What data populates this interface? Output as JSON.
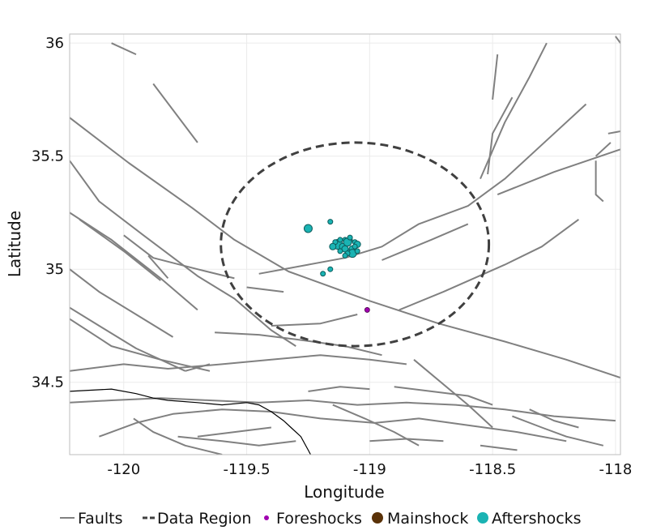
{
  "chart_data": {
    "type": "scatter",
    "title": "",
    "xlabel": "Longitude",
    "ylabel": "Latitude",
    "xlim": [
      -120.22,
      -117.98
    ],
    "ylim": [
      34.18,
      36.04
    ],
    "grid": true,
    "legend_placement": "bottom",
    "x_ticks": [
      {
        "value": -120,
        "label": "-120"
      },
      {
        "value": -119.5,
        "label": "-119.5"
      },
      {
        "value": -119,
        "label": "-119"
      },
      {
        "value": -118.5,
        "label": "-118.5"
      },
      {
        "value": -118,
        "label": "-118"
      }
    ],
    "y_ticks": [
      {
        "value": 34.5,
        "label": "34.5"
      },
      {
        "value": 35,
        "label": "35"
      },
      {
        "value": 35.5,
        "label": "35.5"
      },
      {
        "value": 36,
        "label": "36"
      }
    ],
    "colors": {
      "faults": "#808080",
      "coast": "#000000",
      "region": "#404040",
      "foreshocks": "#a000b0",
      "mainshock": "#5a3208",
      "aftershocks": "#1ab3b3",
      "aftershock_edge": "#0d5c5c",
      "grid": "#ebebeb",
      "frame": "#bdbdbd"
    },
    "legend": [
      {
        "label": "Faults",
        "symbol": "line"
      },
      {
        "label": "Data Region",
        "symbol": "dashed"
      },
      {
        "label": "Foreshocks",
        "symbol": "small-dot"
      },
      {
        "label": "Mainshock",
        "symbol": "large-dot"
      },
      {
        "label": "Aftershocks",
        "symbol": "large-dot"
      }
    ],
    "data_region": {
      "center": [
        -119.06,
        35.11
      ],
      "radius_lon": 0.545,
      "radius_lat": 0.45
    },
    "foreshocks": [
      {
        "x": -119.01,
        "y": 34.82,
        "size": 3
      }
    ],
    "mainshocks": [],
    "aftershocks": [
      {
        "x": -119.25,
        "y": 35.18,
        "size": 5
      },
      {
        "x": -119.16,
        "y": 35.21,
        "size": 3
      },
      {
        "x": -119.16,
        "y": 35.0,
        "size": 3
      },
      {
        "x": -119.19,
        "y": 34.98,
        "size": 3
      },
      {
        "x": -119.08,
        "y": 35.13,
        "size": 3
      },
      {
        "x": -119.06,
        "y": 35.12,
        "size": 3
      },
      {
        "x": -119.05,
        "y": 35.11,
        "size": 4
      },
      {
        "x": -119.13,
        "y": 35.11,
        "size": 6
      },
      {
        "x": -119.11,
        "y": 35.1,
        "size": 4
      },
      {
        "x": -119.1,
        "y": 35.09,
        "size": 4
      },
      {
        "x": -119.08,
        "y": 35.08,
        "size": 3
      },
      {
        "x": -119.07,
        "y": 35.09,
        "size": 4
      },
      {
        "x": -119.06,
        "y": 35.1,
        "size": 3
      },
      {
        "x": -119.07,
        "y": 35.07,
        "size": 5
      },
      {
        "x": -119.09,
        "y": 35.07,
        "size": 3
      },
      {
        "x": -119.12,
        "y": 35.13,
        "size": 3
      },
      {
        "x": -119.14,
        "y": 35.12,
        "size": 3
      },
      {
        "x": -119.15,
        "y": 35.1,
        "size": 4
      },
      {
        "x": -119.1,
        "y": 35.13,
        "size": 3
      },
      {
        "x": -119.09,
        "y": 35.12,
        "size": 5
      },
      {
        "x": -119.08,
        "y": 35.14,
        "size": 3
      },
      {
        "x": -119.05,
        "y": 35.08,
        "size": 3
      },
      {
        "x": -119.12,
        "y": 35.08,
        "size": 3
      },
      {
        "x": -119.1,
        "y": 35.06,
        "size": 3
      }
    ],
    "faults": [
      [
        [
          -120.22,
          35.67
        ],
        [
          -119.98,
          35.47
        ],
        [
          -119.72,
          35.27
        ],
        [
          -119.55,
          35.13
        ],
        [
          -119.33,
          34.99
        ],
        [
          -119.0,
          34.86
        ],
        [
          -118.72,
          34.76
        ],
        [
          -118.45,
          34.68
        ],
        [
          -118.2,
          34.6
        ],
        [
          -117.98,
          34.52
        ]
      ],
      [
        [
          -120.22,
          35.48
        ],
        [
          -120.1,
          35.3
        ],
        [
          -119.92,
          35.15
        ],
        [
          -119.7,
          34.97
        ],
        [
          -119.55,
          34.87
        ],
        [
          -119.4,
          34.73
        ],
        [
          -119.3,
          34.66
        ]
      ],
      [
        [
          -120.22,
          35.25
        ],
        [
          -120.05,
          35.13
        ],
        [
          -119.85,
          34.96
        ],
        [
          -119.7,
          34.82
        ]
      ],
      [
        [
          -120.18,
          35.22
        ],
        [
          -120.0,
          35.08
        ],
        [
          -119.85,
          34.95
        ]
      ],
      [
        [
          -120.22,
          35.0
        ],
        [
          -120.1,
          34.9
        ],
        [
          -119.95,
          34.8
        ],
        [
          -119.8,
          34.7
        ]
      ],
      [
        [
          -120.22,
          34.83
        ],
        [
          -120.1,
          34.75
        ],
        [
          -119.95,
          34.65
        ],
        [
          -119.75,
          34.55
        ]
      ],
      [
        [
          -120.22,
          34.78
        ],
        [
          -120.05,
          34.66
        ],
        [
          -119.85,
          34.6
        ],
        [
          -119.65,
          34.55
        ]
      ],
      [
        [
          -120.22,
          34.55
        ],
        [
          -120.0,
          34.58
        ],
        [
          -119.82,
          34.56
        ],
        [
          -119.6,
          34.58
        ],
        [
          -119.4,
          34.6
        ],
        [
          -119.2,
          34.62
        ],
        [
          -119.0,
          34.6
        ],
        [
          -118.85,
          34.58
        ]
      ],
      [
        [
          -119.88,
          35.82
        ],
        [
          -119.7,
          35.56
        ]
      ],
      [
        [
          -120.05,
          36.0
        ],
        [
          -119.95,
          35.95
        ]
      ],
      [
        [
          -120.0,
          35.15
        ],
        [
          -119.88,
          35.05
        ],
        [
          -119.7,
          35.0
        ],
        [
          -119.55,
          34.96
        ]
      ],
      [
        [
          -119.9,
          35.06
        ],
        [
          -119.82,
          34.96
        ]
      ],
      [
        [
          -119.45,
          34.98
        ],
        [
          -119.25,
          35.02
        ],
        [
          -119.1,
          35.05
        ],
        [
          -118.95,
          35.1
        ],
        [
          -118.8,
          35.2
        ],
        [
          -118.6,
          35.28
        ],
        [
          -118.45,
          35.4
        ],
        [
          -118.3,
          35.55
        ],
        [
          -118.12,
          35.73
        ]
      ],
      [
        [
          -118.95,
          35.04
        ],
        [
          -118.75,
          35.13
        ],
        [
          -118.6,
          35.2
        ]
      ],
      [
        [
          -118.88,
          34.82
        ],
        [
          -118.7,
          34.9
        ],
        [
          -118.45,
          35.02
        ],
        [
          -118.3,
          35.1
        ],
        [
          -118.15,
          35.22
        ]
      ],
      [
        [
          -118.82,
          34.6
        ],
        [
          -118.6,
          34.4
        ],
        [
          -118.5,
          34.3
        ]
      ],
      [
        [
          -118.48,
          35.33
        ],
        [
          -118.25,
          35.43
        ],
        [
          -117.98,
          35.53
        ]
      ],
      [
        [
          -118.55,
          35.4
        ],
        [
          -118.45,
          35.65
        ],
        [
          -118.35,
          35.85
        ],
        [
          -118.28,
          36.0
        ]
      ],
      [
        [
          -118.52,
          35.42
        ],
        [
          -118.5,
          35.6
        ],
        [
          -118.42,
          35.76
        ]
      ],
      [
        [
          -118.5,
          35.75
        ],
        [
          -118.48,
          35.95
        ]
      ],
      [
        [
          -118.03,
          35.6
        ],
        [
          -117.98,
          35.61
        ]
      ],
      [
        [
          -118.08,
          35.48
        ],
        [
          -118.08,
          35.33
        ],
        [
          -118.05,
          35.3
        ]
      ],
      [
        [
          -118.08,
          35.5
        ],
        [
          -118.02,
          35.56
        ]
      ],
      [
        [
          -118.0,
          36.03
        ],
        [
          -117.98,
          36.0
        ]
      ],
      [
        [
          -119.5,
          34.92
        ],
        [
          -119.35,
          34.9
        ]
      ],
      [
        [
          -119.63,
          34.72
        ],
        [
          -119.45,
          34.71
        ],
        [
          -119.3,
          34.69
        ],
        [
          -119.1,
          34.66
        ],
        [
          -118.95,
          34.62
        ]
      ],
      [
        [
          -119.4,
          34.75
        ],
        [
          -119.2,
          34.76
        ],
        [
          -119.05,
          34.8
        ]
      ],
      [
        [
          -120.22,
          34.41
        ],
        [
          -120.05,
          34.42
        ],
        [
          -119.85,
          34.43
        ],
        [
          -119.65,
          34.42
        ],
        [
          -119.45,
          34.41
        ],
        [
          -119.25,
          34.42
        ],
        [
          -119.05,
          34.4
        ],
        [
          -118.85,
          34.41
        ],
        [
          -118.65,
          34.4
        ],
        [
          -118.45,
          34.38
        ],
        [
          -118.25,
          34.35
        ],
        [
          -118.0,
          34.33
        ]
      ],
      [
        [
          -120.1,
          34.26
        ],
        [
          -119.95,
          34.32
        ],
        [
          -119.8,
          34.36
        ],
        [
          -119.6,
          34.38
        ],
        [
          -119.4,
          34.37
        ],
        [
          -119.2,
          34.34
        ],
        [
          -118.98,
          34.32
        ],
        [
          -118.8,
          34.34
        ],
        [
          -118.6,
          34.31
        ],
        [
          -118.4,
          34.28
        ],
        [
          -118.2,
          34.24
        ]
      ],
      [
        [
          -119.96,
          34.34
        ],
        [
          -119.88,
          34.28
        ],
        [
          -119.75,
          34.22
        ],
        [
          -119.6,
          34.18
        ]
      ],
      [
        [
          -119.78,
          34.26
        ],
        [
          -119.6,
          34.24
        ],
        [
          -119.45,
          34.22
        ],
        [
          -119.3,
          34.24
        ]
      ],
      [
        [
          -119.15,
          34.4
        ],
        [
          -119.02,
          34.34
        ],
        [
          -118.9,
          34.28
        ],
        [
          -118.8,
          34.22
        ]
      ],
      [
        [
          -118.9,
          34.48
        ],
        [
          -118.75,
          34.46
        ],
        [
          -118.6,
          34.44
        ],
        [
          -118.5,
          34.4
        ]
      ],
      [
        [
          -118.42,
          34.35
        ],
        [
          -118.3,
          34.3
        ],
        [
          -118.2,
          34.26
        ],
        [
          -118.05,
          34.22
        ]
      ],
      [
        [
          -118.55,
          34.22
        ],
        [
          -118.4,
          34.2
        ]
      ],
      [
        [
          -119.7,
          34.26
        ],
        [
          -119.55,
          34.28
        ],
        [
          -119.4,
          34.3
        ]
      ],
      [
        [
          -119.0,
          34.24
        ],
        [
          -118.85,
          34.25
        ],
        [
          -118.7,
          34.24
        ]
      ],
      [
        [
          -118.35,
          34.38
        ],
        [
          -118.25,
          34.33
        ],
        [
          -118.15,
          34.3
        ]
      ],
      [
        [
          -119.25,
          34.46
        ],
        [
          -119.12,
          34.48
        ],
        [
          -119.0,
          34.47
        ]
      ],
      [
        [
          -119.75,
          34.55
        ],
        [
          -119.65,
          34.58
        ]
      ]
    ],
    "coastline": [
      [
        -120.22,
        34.46
      ],
      [
        -120.05,
        34.47
      ],
      [
        -119.95,
        34.45
      ],
      [
        -119.88,
        34.43
      ],
      [
        -119.82,
        34.42
      ],
      [
        -119.7,
        34.41
      ],
      [
        -119.6,
        34.4
      ],
      [
        -119.5,
        34.41
      ],
      [
        -119.45,
        34.4
      ],
      [
        -119.4,
        34.37
      ],
      [
        -119.35,
        34.33
      ],
      [
        -119.32,
        34.3
      ],
      [
        -119.28,
        34.26
      ],
      [
        -119.25,
        34.2
      ],
      [
        -119.24,
        34.18
      ]
    ]
  }
}
